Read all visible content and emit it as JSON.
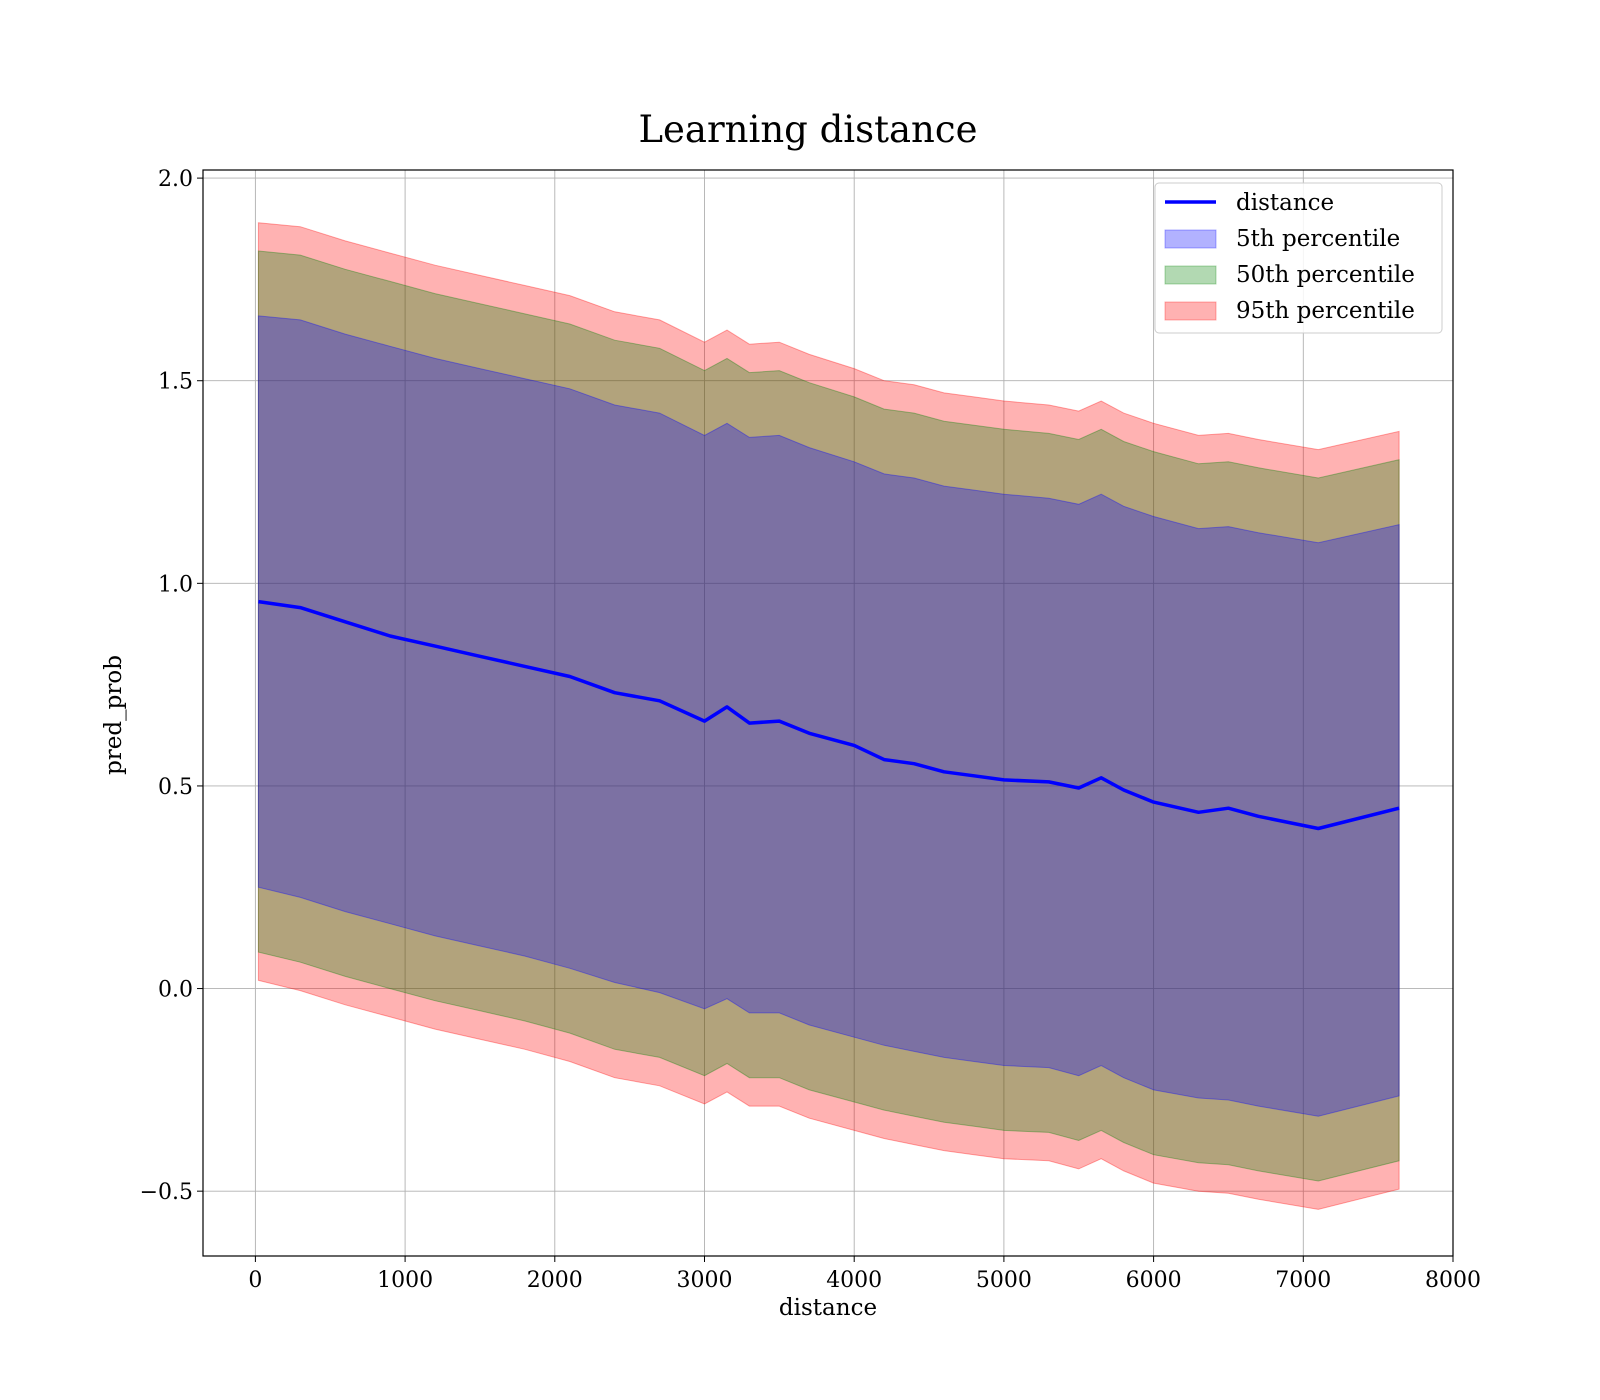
{
  "chart_data": {
    "type": "line",
    "title": "Learning distance",
    "xlabel": "distance",
    "ylabel": "pred_prob",
    "xlim": [
      -350,
      8000
    ],
    "ylim": [
      -0.66,
      2.02
    ],
    "xticks": [
      0,
      1000,
      2000,
      3000,
      4000,
      5000,
      6000,
      7000,
      8000
    ],
    "xtick_labels": [
      "0",
      "1000",
      "2000",
      "3000",
      "4000",
      "5000",
      "6000",
      "7000",
      "8000"
    ],
    "yticks": [
      -0.5,
      0.0,
      0.5,
      1.0,
      1.5,
      2.0
    ],
    "ytick_labels": [
      "−0.5",
      "0.0",
      "0.5",
      "1.0",
      "1.5",
      "2.0"
    ],
    "grid": true,
    "legend_position": "top-right",
    "x": [
      20,
      300,
      600,
      900,
      1200,
      1500,
      1800,
      2100,
      2400,
      2700,
      3000,
      3150,
      3300,
      3500,
      3700,
      4000,
      4200,
      4400,
      4600,
      4800,
      5000,
      5300,
      5500,
      5650,
      5800,
      6000,
      6300,
      6500,
      6700,
      7100,
      7640
    ],
    "series": [
      {
        "name": "distance",
        "kind": "line",
        "color": "#0000ff",
        "values": [
          0.955,
          0.94,
          0.905,
          0.87,
          0.845,
          0.82,
          0.795,
          0.77,
          0.73,
          0.71,
          0.66,
          0.695,
          0.655,
          0.66,
          0.63,
          0.6,
          0.565,
          0.555,
          0.535,
          0.525,
          0.515,
          0.51,
          0.495,
          0.52,
          0.49,
          0.46,
          0.435,
          0.445,
          0.425,
          0.395,
          0.445
        ]
      },
      {
        "name": "5th percentile",
        "kind": "band",
        "color": "#0000ff",
        "lower": [
          0.25,
          0.225,
          0.19,
          0.16,
          0.13,
          0.105,
          0.08,
          0.05,
          0.015,
          -0.01,
          -0.05,
          -0.025,
          -0.06,
          -0.06,
          -0.09,
          -0.12,
          -0.14,
          -0.155,
          -0.17,
          -0.18,
          -0.19,
          -0.195,
          -0.215,
          -0.19,
          -0.22,
          -0.25,
          -0.27,
          -0.275,
          -0.29,
          -0.315,
          -0.265
        ],
        "upper": [
          1.66,
          1.65,
          1.615,
          1.585,
          1.555,
          1.53,
          1.505,
          1.48,
          1.44,
          1.42,
          1.365,
          1.395,
          1.36,
          1.365,
          1.335,
          1.3,
          1.27,
          1.26,
          1.24,
          1.23,
          1.22,
          1.21,
          1.195,
          1.22,
          1.19,
          1.165,
          1.135,
          1.14,
          1.125,
          1.1,
          1.145
        ]
      },
      {
        "name": "50th percentile",
        "kind": "band",
        "color": "#008000",
        "lower": [
          0.09,
          0.065,
          0.03,
          0.0,
          -0.03,
          -0.055,
          -0.08,
          -0.11,
          -0.15,
          -0.17,
          -0.215,
          -0.185,
          -0.22,
          -0.22,
          -0.25,
          -0.28,
          -0.3,
          -0.315,
          -0.33,
          -0.34,
          -0.35,
          -0.355,
          -0.375,
          -0.35,
          -0.38,
          -0.41,
          -0.43,
          -0.435,
          -0.45,
          -0.475,
          -0.425
        ],
        "upper": [
          1.82,
          1.81,
          1.775,
          1.745,
          1.715,
          1.69,
          1.665,
          1.64,
          1.6,
          1.58,
          1.525,
          1.555,
          1.52,
          1.525,
          1.495,
          1.46,
          1.43,
          1.42,
          1.4,
          1.39,
          1.38,
          1.37,
          1.355,
          1.38,
          1.35,
          1.325,
          1.295,
          1.3,
          1.285,
          1.26,
          1.305
        ]
      },
      {
        "name": "95th percentile",
        "kind": "band",
        "color": "#ff0000",
        "lower": [
          0.02,
          -0.005,
          -0.04,
          -0.07,
          -0.1,
          -0.125,
          -0.15,
          -0.18,
          -0.22,
          -0.24,
          -0.285,
          -0.255,
          -0.29,
          -0.29,
          -0.32,
          -0.35,
          -0.37,
          -0.385,
          -0.4,
          -0.41,
          -0.42,
          -0.425,
          -0.445,
          -0.42,
          -0.45,
          -0.48,
          -0.5,
          -0.505,
          -0.52,
          -0.545,
          -0.495
        ],
        "upper": [
          1.89,
          1.88,
          1.845,
          1.815,
          1.785,
          1.76,
          1.735,
          1.71,
          1.67,
          1.65,
          1.595,
          1.625,
          1.59,
          1.595,
          1.565,
          1.53,
          1.5,
          1.49,
          1.47,
          1.46,
          1.45,
          1.44,
          1.425,
          1.45,
          1.42,
          1.395,
          1.365,
          1.37,
          1.355,
          1.33,
          1.375
        ]
      }
    ]
  }
}
